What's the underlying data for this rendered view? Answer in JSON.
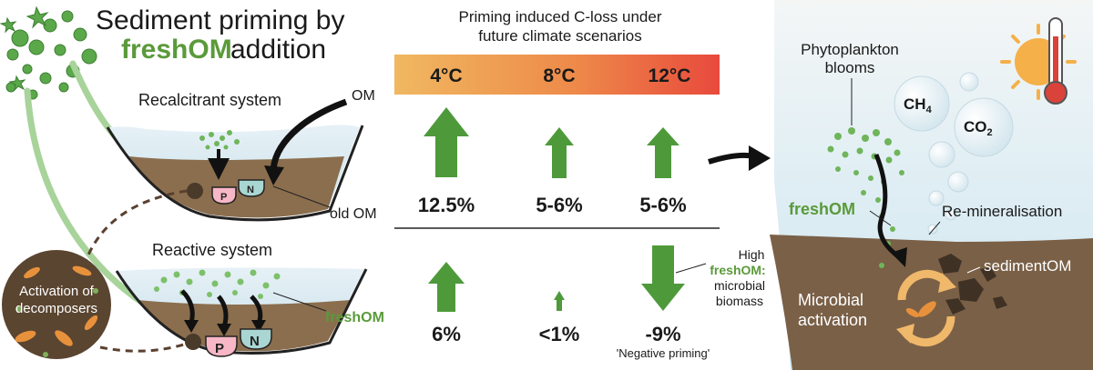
{
  "title": {
    "line1": "Sediment priming by",
    "highlight": "freshOM",
    "rest": "addition"
  },
  "left": {
    "recalcitrant_label": "Recalcitrant system",
    "om_label": "OM",
    "old_om_label": "old OM",
    "reactive_label": "Reactive system",
    "fresh_om_label": "freshOM",
    "decomposers_line1": "Activation of",
    "decomposers_line2": "decomposers",
    "p_label": "P",
    "n_label": "N"
  },
  "middle": {
    "heading_line1": "Priming induced C-loss under",
    "heading_line2": "future climate scenarios",
    "temperatures": [
      "4°C",
      "8°C",
      "12°C"
    ],
    "recalcitrant_values": [
      "12.5%",
      "5-6%",
      "5-6%"
    ],
    "reactive_values": [
      "6%",
      "<1%",
      "-9%"
    ],
    "high_note_line1": "High",
    "high_note_line2": "freshOM:",
    "high_note_line3": "microbial",
    "high_note_line4": "biomass",
    "negative_priming": "'Negative priming'"
  },
  "right": {
    "phyto_line1": "Phytoplankton",
    "phyto_line2": "blooms",
    "ch4_main": "CH",
    "ch4_sub": "4",
    "co2_main": "CO",
    "co2_sub": "2",
    "fresh_om_label": "freshOM",
    "remin_label": "Re-mineralisation",
    "sediment_om_label": "sedimentOM",
    "microbial_line1": "Microbial",
    "microbial_line2": "activation"
  },
  "colors": {
    "arrow_green": "#4e9a3b",
    "fresh_green": "#5a9a3a",
    "water": "#d8e9f1",
    "sediment": "#8b6e4e",
    "gradient_start": "#f0b860",
    "gradient_end": "#e84a3c"
  }
}
